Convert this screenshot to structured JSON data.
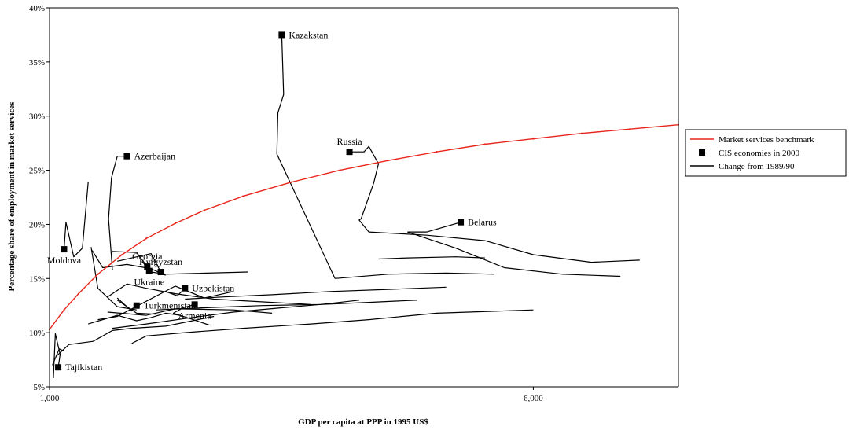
{
  "chart_data": {
    "type": "line",
    "xlabel": "GDP per capita at PPP in 1995 US$",
    "ylabel": "Percentage share of employment in market services",
    "xlim": [
      1000,
      7500
    ],
    "ylim": [
      5,
      40
    ],
    "x_ticks": [
      {
        "value": 1000,
        "label": "1,000"
      },
      {
        "value": 6000,
        "label": "6,000"
      }
    ],
    "y_ticks": [
      {
        "value": 5,
        "label": "5%"
      },
      {
        "value": 10,
        "label": "10%"
      },
      {
        "value": 15,
        "label": "15%"
      },
      {
        "value": 20,
        "label": "20%"
      },
      {
        "value": 25,
        "label": "25%"
      },
      {
        "value": 30,
        "label": "30%"
      },
      {
        "value": 35,
        "label": "35%"
      },
      {
        "value": 40,
        "label": "40%"
      }
    ],
    "grid": false,
    "legend_position": "right",
    "legend": [
      {
        "label": "Market services benchmark",
        "kind": "line",
        "color": "#e8261c"
      },
      {
        "label": "CIS economies in 2000",
        "kind": "marker",
        "color": "#000000"
      },
      {
        "label": "Change from 1989/90",
        "kind": "line",
        "color": "#000000"
      }
    ],
    "benchmark": {
      "name": "Market services benchmark",
      "color": "#e8261c",
      "x": [
        1000,
        1150,
        1300,
        1500,
        1750,
        2000,
        2300,
        2600,
        3000,
        3500,
        4000,
        4500,
        5000,
        5500,
        6000,
        6500,
        7000,
        7500
      ],
      "y": [
        10.3,
        12.1,
        13.6,
        15.4,
        17.2,
        18.7,
        20.1,
        21.3,
        22.6,
        23.9,
        25.0,
        25.9,
        26.7,
        27.4,
        27.9,
        28.4,
        28.8,
        29.2
      ]
    },
    "economies": [
      {
        "label": "Kazakstan",
        "x": 3400,
        "y": 37.5,
        "label_side": "right",
        "path_x": [
          3950,
          3350,
          3360,
          3420,
          3400
        ],
        "path_y": [
          15.0,
          26.5,
          30.3,
          32.0,
          37.5
        ]
      },
      {
        "label": "Russia",
        "x": 4100,
        "y": 26.7,
        "label_side": "above",
        "path_x": [
          4300,
          4200,
          4220,
          4350,
          4400,
          4300,
          4250,
          4100
        ],
        "path_y": [
          19.3,
          20.4,
          20.5,
          23.8,
          25.6,
          27.2,
          26.7,
          26.7
        ]
      },
      {
        "label": "Belarus",
        "x": 5250,
        "y": 20.2,
        "label_side": "right",
        "path_x": [
          4700,
          4900,
          5250
        ],
        "path_y": [
          19.3,
          19.3,
          20.2
        ]
      },
      {
        "label": "Azerbaijan",
        "x": 1800,
        "y": 26.3,
        "label_side": "right",
        "path_x": [
          1650,
          1610,
          1640,
          1700,
          1800
        ],
        "path_y": [
          15.8,
          20.5,
          24.3,
          26.3,
          26.3
        ]
      },
      {
        "label": "Moldova",
        "x": 1150,
        "y": 17.7,
        "label_side": "below",
        "path_x": [
          1400,
          1340,
          1250,
          1170,
          1150
        ],
        "path_y": [
          23.9,
          17.8,
          17.0,
          20.2,
          17.7
        ]
      },
      {
        "label": "Georgia",
        "x": 2010,
        "y": 16.1,
        "label_side": "above",
        "path_x": [
          1650,
          1900,
          2010
        ],
        "path_y": [
          17.5,
          17.4,
          16.1
        ]
      },
      {
        "label": "Ukraine",
        "x": 2030,
        "y": 15.7,
        "label_side": "below",
        "path_x": [
          3050,
          2200,
          2050,
          2030
        ],
        "path_y": [
          15.6,
          15.4,
          15.6,
          15.7
        ]
      },
      {
        "label": "Kyrgyzstan",
        "x": 2150,
        "y": 15.6,
        "label_side": "above",
        "path_x": [
          1700,
          2050,
          2150
        ],
        "path_y": [
          16.6,
          17.3,
          15.6
        ]
      },
      {
        "label": "Uzbekistan",
        "x": 2400,
        "y": 14.1,
        "label_side": "right",
        "path_x": [
          2200,
          2320,
          2400
        ],
        "path_y": [
          13.8,
          13.4,
          14.1
        ]
      },
      {
        "label": "Turkmenistan",
        "x": 1900,
        "y": 12.5,
        "label_side": "right",
        "path_x": [
          1700,
          1850,
          1900
        ],
        "path_y": [
          13.2,
          12.0,
          12.5
        ]
      },
      {
        "label": "Armenia",
        "x": 2500,
        "y": 12.6,
        "label_side": "below",
        "path_x": [
          2650,
          2450,
          2280,
          2380,
          2500
        ],
        "path_y": [
          10.7,
          11.3,
          11.8,
          12.3,
          12.6
        ]
      },
      {
        "label": "Tajikistan",
        "x": 1090,
        "y": 6.8,
        "label_side": "right",
        "path_x": [
          1040,
          1060,
          1110,
          1090
        ],
        "path_y": [
          5.8,
          9.9,
          8.0,
          6.8
        ]
      }
    ],
    "other_trajectories": [
      {
        "x": [
          1440,
          1550,
          1800,
          2050,
          2200
        ],
        "y": [
          17.6,
          16.0,
          16.3,
          15.9,
          15.3
        ]
      },
      {
        "x": [
          1430,
          1500,
          1700,
          1900
        ],
        "y": [
          17.9,
          14.1,
          12.4,
          12.1
        ]
      },
      {
        "x": [
          1600,
          1800,
          2000,
          2300,
          2700,
          3300,
          3700
        ],
        "y": [
          13.3,
          14.5,
          14.1,
          13.6,
          13.1,
          12.8,
          12.6
        ]
      },
      {
        "x": [
          1700,
          1900,
          2100
        ],
        "y": [
          13.0,
          11.8,
          11.7
        ]
      },
      {
        "x": [
          1400,
          1700,
          1900,
          2050,
          2200,
          2350
        ],
        "y": [
          10.8,
          11.6,
          11.1,
          11.4,
          11.8,
          11.6
        ]
      },
      {
        "x": [
          1600,
          2000,
          2300,
          2900,
          3300
        ],
        "y": [
          11.9,
          11.6,
          12.2,
          12.1,
          11.8
        ]
      },
      {
        "x": [
          1500,
          1700,
          2000,
          2300,
          2600,
          2900
        ],
        "y": [
          11.2,
          11.5,
          12.9,
          14.3,
          13.2,
          13.8
        ]
      },
      {
        "x": [
          1650,
          2000,
          2400,
          2900,
          3400,
          3800,
          4200
        ],
        "y": [
          10.4,
          10.8,
          11.3,
          11.9,
          12.3,
          12.6,
          13.0
        ]
      },
      {
        "x": [
          2100,
          2600,
          3200,
          3800,
          4300,
          4800
        ],
        "y": [
          12.1,
          12.3,
          12.5,
          12.6,
          12.8,
          13.0
        ]
      },
      {
        "x": [
          2400,
          2800,
          3300,
          3900,
          4500,
          5100
        ],
        "y": [
          13.1,
          13.3,
          13.5,
          13.8,
          14.0,
          14.2
        ]
      },
      {
        "x": [
          3950,
          4500,
          5100,
          5600
        ],
        "y": [
          15.0,
          15.4,
          15.5,
          15.4
        ]
      },
      {
        "x": [
          4400,
          4700,
          5200,
          5500
        ],
        "y": [
          16.8,
          16.9,
          17.0,
          16.9
        ]
      },
      {
        "x": [
          4700,
          5200,
          5700,
          6300,
          6900
        ],
        "y": [
          19.3,
          17.8,
          16.0,
          15.4,
          15.2
        ]
      },
      {
        "x": [
          4300,
          4900,
          5500,
          6000,
          6600,
          7100
        ],
        "y": [
          19.3,
          19.0,
          18.5,
          17.2,
          16.5,
          16.7
        ]
      },
      {
        "x": [
          1850,
          2000,
          2400,
          3000,
          3700,
          4300,
          5000,
          6000
        ],
        "y": [
          9.0,
          9.7,
          10.0,
          10.4,
          10.8,
          11.2,
          11.8,
          12.1
        ]
      },
      {
        "x": [
          1080,
          1200,
          1450,
          1650,
          1850,
          2200,
          2700
        ],
        "y": [
          7.9,
          8.9,
          9.2,
          10.2,
          10.4,
          10.6,
          11.5
        ]
      },
      {
        "x": [
          1030,
          1100,
          1150
        ],
        "y": [
          7.0,
          8.5,
          8.3
        ]
      }
    ]
  }
}
